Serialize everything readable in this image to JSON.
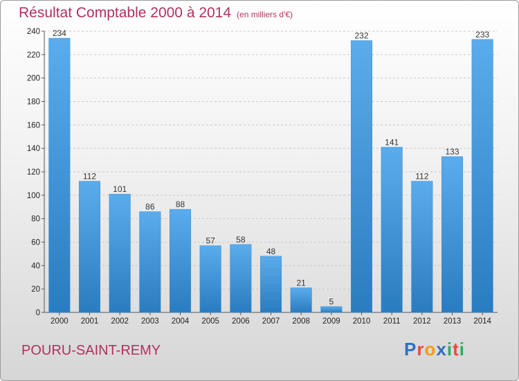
{
  "header": {
    "title": "Résultat Comptable 2000 à 2014",
    "unit": "(en milliers d'€)"
  },
  "footer": {
    "commune": "POURU-SAINT-REMY",
    "logo": [
      "P",
      "r",
      "o",
      "x",
      "i",
      "t",
      "i"
    ]
  },
  "colors": {
    "title": "#b03060",
    "bar_light": "#5aacec",
    "bar_dark": "#2a7cc0",
    "logo": [
      "#2f6fc4",
      "#e74c3c",
      "#f39c12",
      "#2f6fc4",
      "#27ae60",
      "#e74c3c",
      "#27ae60"
    ]
  },
  "chart_data": {
    "type": "bar",
    "title": "Résultat Comptable 2000 à 2014",
    "subtitle": "(en milliers d'€)",
    "categories": [
      "2000",
      "2001",
      "2002",
      "2003",
      "2004",
      "2005",
      "2006",
      "2007",
      "2008",
      "2009",
      "2010",
      "2011",
      "2012",
      "2013",
      "2014"
    ],
    "values": [
      234,
      112,
      101,
      86,
      88,
      57,
      58,
      48,
      21,
      5,
      232,
      141,
      112,
      133,
      233
    ],
    "ylim": [
      0,
      240
    ],
    "yticks": [
      0,
      20,
      40,
      60,
      80,
      100,
      120,
      140,
      160,
      180,
      200,
      220,
      240
    ],
    "grid": true,
    "legend": "none"
  }
}
